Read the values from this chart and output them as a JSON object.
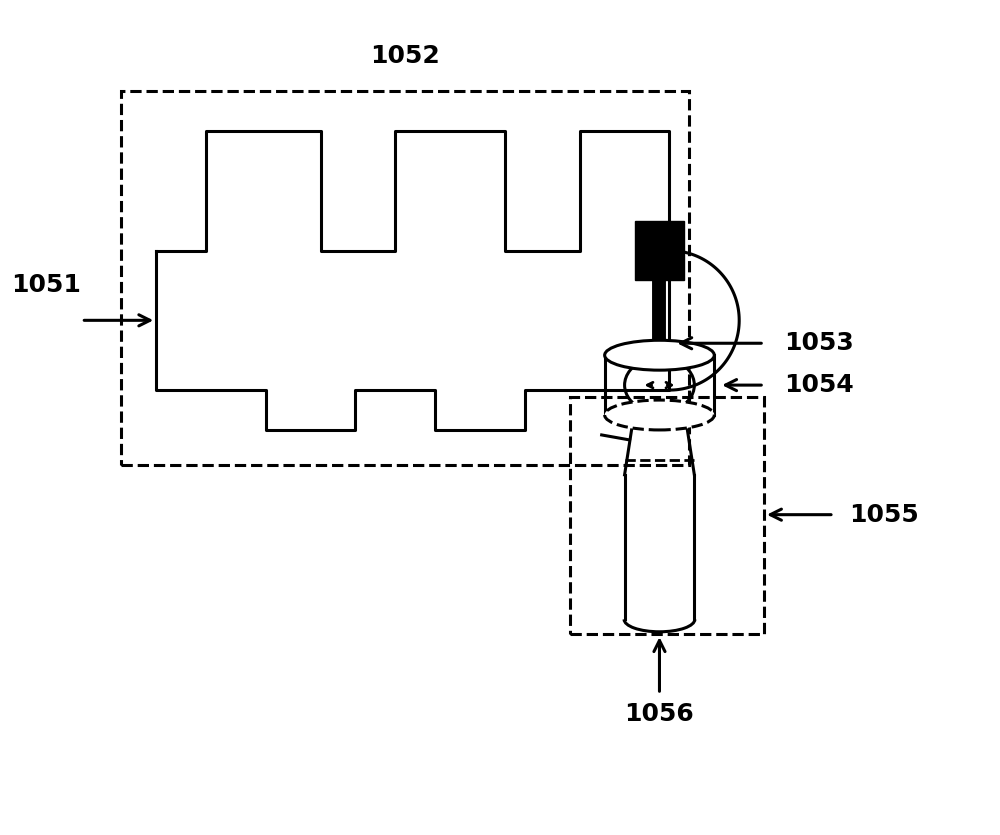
{
  "bg_color": "#ffffff",
  "line_color": "#000000",
  "label_1051": "1051",
  "label_1052": "1052",
  "label_1053": "1053",
  "label_1054": "1054",
  "label_1055": "1055",
  "label_1056": "1056",
  "fontsize_labels": 18,
  "fontweight": "bold"
}
